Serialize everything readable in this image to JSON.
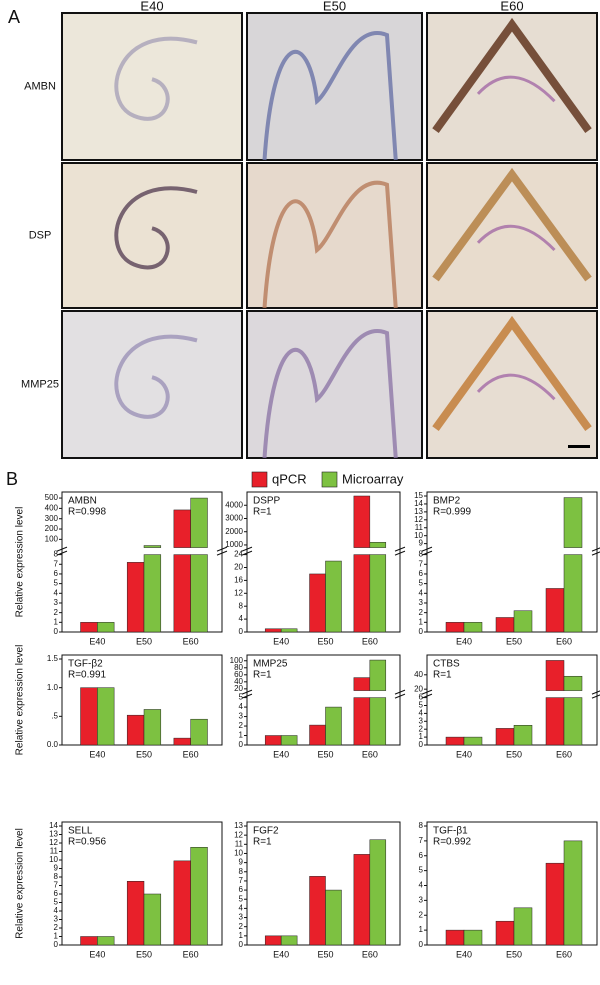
{
  "panel_a": {
    "label": "A",
    "columns": [
      "E40",
      "E50",
      "E60"
    ],
    "rows": [
      "AMBN",
      "DSP",
      "MMP25"
    ]
  },
  "panel_b": {
    "label": "B"
  },
  "legend": [
    {
      "name": "qPCR",
      "color": "#e8202a"
    },
    {
      "name": "Microarray",
      "color": "#7dc141"
    }
  ],
  "chart_data": [
    {
      "type": "bar",
      "title": "AMBN",
      "annotation": "R=0.998",
      "ylabel": "Relative expression level",
      "categories": [
        "E40",
        "E50",
        "E60"
      ],
      "series": [
        {
          "values": [
            1,
            7.2,
            385
          ]
        },
        {
          "values": [
            1,
            40,
            500
          ]
        }
      ],
      "segments": [
        {
          "ylim": [
            0,
            8
          ],
          "yticks": [
            0,
            1,
            2,
            3,
            4,
            5,
            6,
            7,
            8
          ]
        },
        {
          "ylim": [
            20,
            520
          ],
          "yticks": [
            100,
            200,
            300,
            400,
            500
          ]
        }
      ]
    },
    {
      "type": "bar",
      "title": "DSPP",
      "annotation": "R=1",
      "categories": [
        "E40",
        "E50",
        "E60"
      ],
      "series": [
        {
          "values": [
            1,
            18,
            4700
          ]
        },
        {
          "values": [
            1,
            22,
            1200
          ]
        }
      ],
      "segments": [
        {
          "ylim": [
            0,
            24
          ],
          "yticks": [
            0,
            4,
            8,
            12,
            16,
            20,
            24
          ]
        },
        {
          "ylim": [
            800,
            4700
          ],
          "yticks": [
            1000,
            2000,
            3000,
            4000
          ]
        }
      ]
    },
    {
      "type": "bar",
      "title": "BMP2",
      "annotation": "R=0.999",
      "categories": [
        "E40",
        "E50",
        "E60"
      ],
      "series": [
        {
          "values": [
            1,
            1.5,
            4.5
          ]
        },
        {
          "values": [
            1,
            2.2,
            14.8
          ]
        }
      ],
      "segments": [
        {
          "ylim": [
            0,
            8
          ],
          "yticks": [
            0,
            1,
            2,
            3,
            4,
            5,
            6,
            7,
            8
          ]
        },
        {
          "ylim": [
            8.5,
            15
          ],
          "yticks": [
            9,
            10,
            11,
            12,
            13,
            14,
            15
          ]
        }
      ]
    },
    {
      "type": "bar",
      "title": "TGF-β2",
      "annotation": "R=0.991",
      "ylabel": "Relative expression level",
      "categories": [
        "E40",
        "E50",
        "E60"
      ],
      "series": [
        {
          "values": [
            1.0,
            0.52,
            0.12
          ]
        },
        {
          "values": [
            1.0,
            0.62,
            0.45
          ]
        }
      ],
      "ylim": [
        0,
        1.5
      ],
      "yticks": [
        {
          "value": 0,
          "label": "0.0"
        },
        {
          "value": 0.5,
          "label": ".5"
        },
        {
          "value": 1,
          "label": "1.0"
        },
        {
          "value": 1.5,
          "label": "1.5"
        }
      ]
    },
    {
      "type": "bar",
      "title": "MMP25",
      "annotation": "R=1",
      "categories": [
        "E40",
        "E50",
        "E60"
      ],
      "series": [
        {
          "values": [
            1,
            2.1,
            52
          ]
        },
        {
          "values": [
            1,
            4,
            102
          ]
        }
      ],
      "segments": [
        {
          "ylim": [
            0,
            5
          ],
          "yticks": [
            0,
            1,
            2,
            3,
            4,
            5
          ]
        },
        {
          "ylim": [
            15,
            105
          ],
          "yticks": [
            20,
            40,
            60,
            80,
            100
          ]
        }
      ]
    },
    {
      "type": "bar",
      "title": "CTBS",
      "annotation": "R=1",
      "categories": [
        "E40",
        "E50",
        "E60"
      ],
      "series": [
        {
          "values": [
            1,
            2.1,
            60
          ]
        },
        {
          "values": [
            1,
            2.5,
            38
          ]
        }
      ],
      "segments": [
        {
          "ylim": [
            0,
            6
          ],
          "yticks": [
            0,
            1,
            2,
            3,
            4,
            5,
            6
          ]
        },
        {
          "ylim": [
            18,
            62
          ],
          "yticks": [
            20,
            40
          ]
        }
      ]
    },
    {
      "type": "bar",
      "title": "SELL",
      "annotation": "R=0.956",
      "ylabel": "Relative expression level",
      "categories": [
        "E40",
        "E50",
        "E60"
      ],
      "series": [
        {
          "values": [
            1,
            7.5,
            9.9
          ]
        },
        {
          "values": [
            1,
            6,
            11.5
          ]
        }
      ],
      "ylim": [
        0,
        14
      ],
      "yticks": [
        0,
        1,
        2,
        3,
        4,
        5,
        6,
        7,
        8,
        9,
        10,
        11,
        12,
        13,
        14
      ]
    },
    {
      "type": "bar",
      "title": "FGF2",
      "annotation": "R=1",
      "categories": [
        "E40",
        "E50",
        "E60"
      ],
      "series": [
        {
          "values": [
            1,
            7.5,
            9.9
          ]
        },
        {
          "values": [
            1,
            6,
            11.5
          ]
        }
      ],
      "ylim": [
        0,
        13
      ],
      "yticks": [
        0,
        1,
        2,
        3,
        4,
        5,
        6,
        7,
        8,
        9,
        10,
        11,
        12,
        13
      ]
    },
    {
      "type": "bar",
      "title": "TGF-β1",
      "annotation": "R=0.992",
      "categories": [
        "E40",
        "E50",
        "E60"
      ],
      "series": [
        {
          "values": [
            1,
            1.6,
            5.5
          ]
        },
        {
          "values": [
            1,
            2.5,
            7
          ]
        }
      ],
      "ylim": [
        0,
        8
      ],
      "yticks": [
        0,
        1,
        2,
        3,
        4,
        5,
        6,
        7,
        8
      ]
    }
  ]
}
